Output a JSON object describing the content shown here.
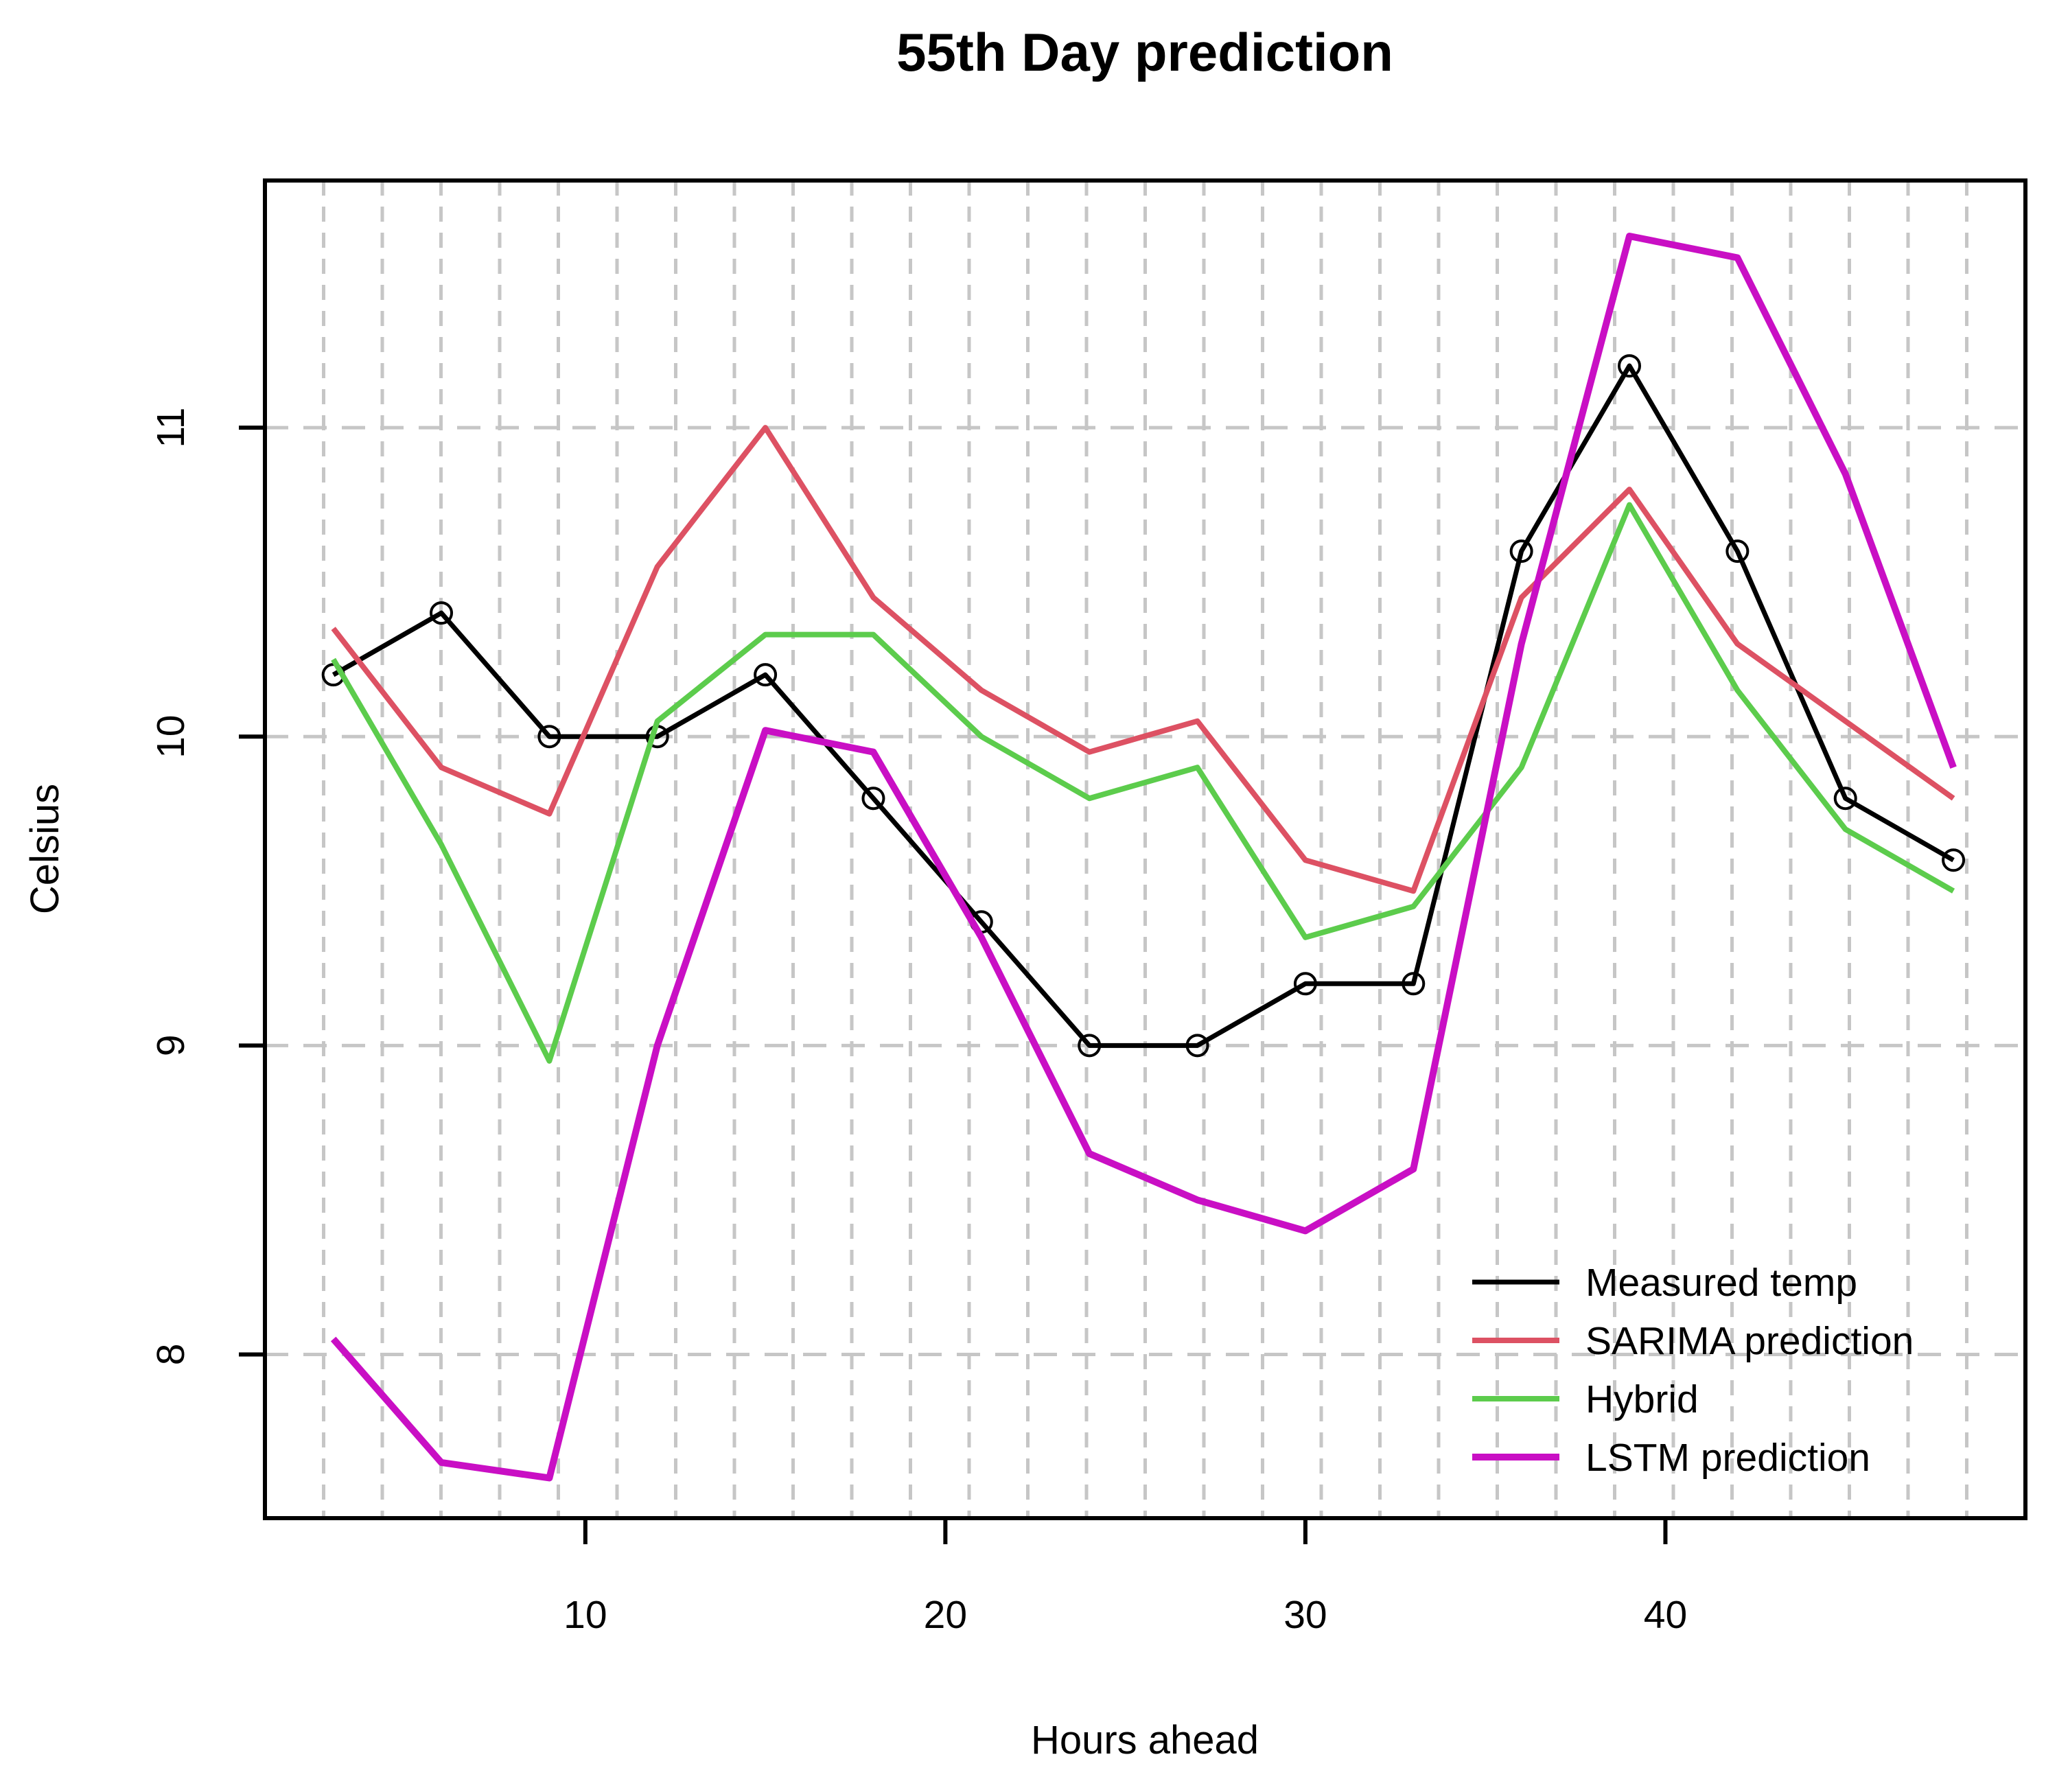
{
  "title": "55th Day prediction",
  "axes": {
    "x_label": "Hours ahead",
    "y_label": "Celsius",
    "x_ticks": [
      10,
      20,
      30,
      40
    ],
    "y_ticks": [
      8,
      9,
      10,
      11
    ]
  },
  "legend": {
    "position": "bottom-right",
    "entries": [
      "Measured temp",
      "SARIMA prediction",
      "Hybrid",
      "LSTM prediction"
    ]
  },
  "colors": {
    "measured": "#000000",
    "sarima": "#DD5163",
    "hybrid": "#5CCC4C",
    "lstm": "#C90FC4",
    "gridline": "#C6C6C6",
    "axis": "#000000"
  },
  "chart_data": {
    "type": "line",
    "title": "55th Day prediction",
    "xlabel": "Hours ahead",
    "ylabel": "Celsius",
    "xlim": [
      1.1,
      50.0
    ],
    "ylim": [
      7.47,
      11.8
    ],
    "grid": {
      "vertical_divisions": 30,
      "horizontal_at_y_ticks": true,
      "style": "dashed-gray"
    },
    "legend_position": "bottom-right-inside",
    "x": [
      3,
      6,
      9,
      12,
      15,
      18,
      21,
      24,
      27,
      30,
      33,
      36,
      39,
      42,
      45,
      48
    ],
    "series": [
      {
        "name": "Measured temp",
        "color": "#000000",
        "marker": "circle",
        "line_width": 7,
        "values": [
          10.2,
          10.4,
          10.0,
          10.0,
          10.2,
          9.8,
          9.4,
          9.0,
          9.0,
          9.2,
          9.2,
          10.6,
          11.2,
          10.6,
          9.8,
          9.6
        ]
      },
      {
        "name": "SARIMA prediction",
        "color": "#DD5163",
        "marker": "none",
        "line_width": 8,
        "values": [
          10.35,
          9.9,
          9.75,
          10.55,
          11.0,
          10.45,
          10.15,
          9.95,
          10.05,
          9.6,
          9.5,
          10.45,
          10.8,
          10.3,
          10.05,
          9.8
        ]
      },
      {
        "name": "Hybrid",
        "color": "#5CCC4C",
        "marker": "none",
        "line_width": 8,
        "values": [
          10.25,
          9.65,
          8.95,
          10.05,
          10.33,
          10.33,
          10.0,
          9.8,
          9.9,
          9.35,
          9.45,
          9.9,
          10.75,
          10.15,
          9.7,
          9.5
        ]
      },
      {
        "name": "LSTM prediction",
        "color": "#C90FC4",
        "marker": "none",
        "line_width": 10,
        "values": [
          8.05,
          7.65,
          7.6,
          9.0,
          10.02,
          9.95,
          9.35,
          8.65,
          8.5,
          8.4,
          8.6,
          10.3,
          11.62,
          11.55,
          10.85,
          9.9
        ]
      }
    ]
  }
}
